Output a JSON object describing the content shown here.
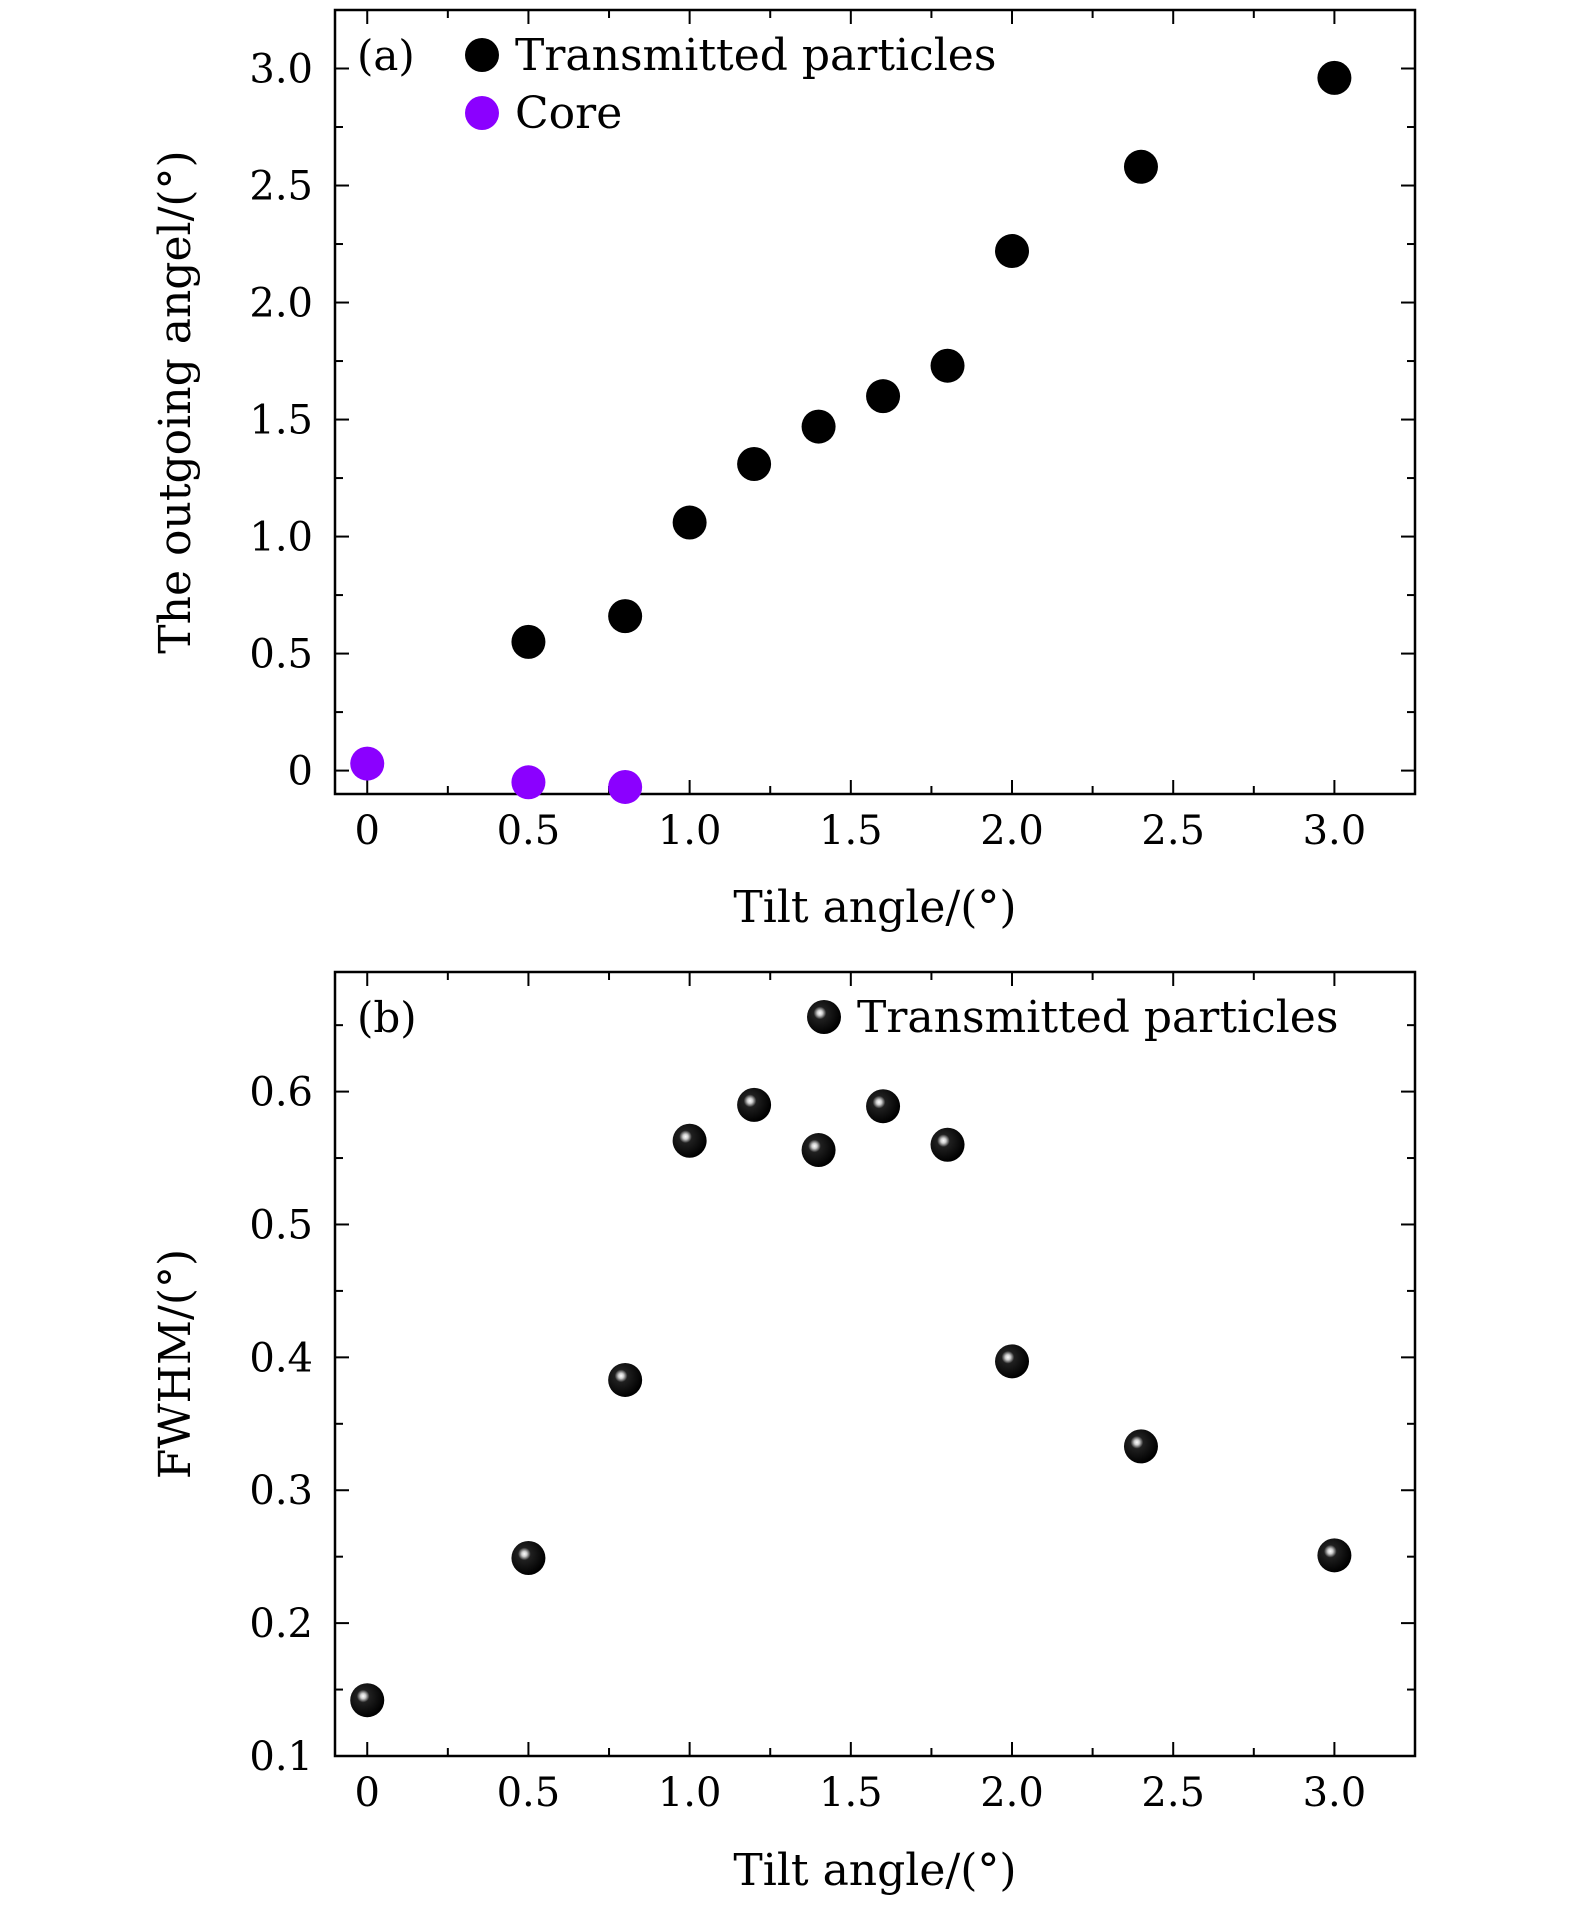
{
  "chart_data": [
    {
      "type": "scatter",
      "panel_label": "(a)",
      "xlabel": "Tilt angle/(°)",
      "ylabel": "The outgoing angel/(°)",
      "xlim": [
        -0.1,
        3.25
      ],
      "ylim": [
        -0.1,
        3.25
      ],
      "x_ticks": [
        0,
        0.5,
        1.0,
        1.5,
        2.0,
        2.5,
        3.0
      ],
      "x_tick_labels": [
        "0",
        "0.5",
        "1.0",
        "1.5",
        "2.0",
        "2.5",
        "3.0"
      ],
      "y_ticks": [
        0,
        0.5,
        1.0,
        1.5,
        2.0,
        2.5,
        3.0
      ],
      "y_tick_labels": [
        "0",
        "0.5",
        "1.0",
        "1.5",
        "2.0",
        "2.5",
        "3.0"
      ],
      "grid": false,
      "legend_position": "top-left",
      "series": [
        {
          "name": "Transmitted particles",
          "color": "#000000",
          "marker": "circle",
          "x": [
            0.5,
            0.8,
            1.0,
            1.2,
            1.4,
            1.6,
            1.8,
            2.0,
            2.4,
            3.0
          ],
          "y": [
            0.55,
            0.66,
            1.06,
            1.31,
            1.47,
            1.6,
            1.73,
            2.22,
            2.58,
            2.96
          ]
        },
        {
          "name": "Core",
          "color": "#8b00ff",
          "marker": "circle",
          "x": [
            0,
            0.5,
            0.8
          ],
          "y": [
            0.03,
            -0.05,
            -0.07
          ]
        }
      ]
    },
    {
      "type": "scatter",
      "panel_label": "(b)",
      "xlabel": "Tilt angle/(°)",
      "ylabel": "FWHM/(°)",
      "xlim": [
        -0.1,
        3.25
      ],
      "ylim": [
        0.1,
        0.69
      ],
      "x_ticks": [
        0,
        0.5,
        1.0,
        1.5,
        2.0,
        2.5,
        3.0
      ],
      "x_tick_labels": [
        "0",
        "0.5",
        "1.0",
        "1.5",
        "2.0",
        "2.5",
        "3.0"
      ],
      "y_ticks": [
        0.1,
        0.2,
        0.3,
        0.4,
        0.5,
        0.6
      ],
      "y_tick_labels": [
        "0.1",
        "0.2",
        "0.3",
        "0.4",
        "0.5",
        "0.6"
      ],
      "grid": false,
      "legend_position": "top-right",
      "series": [
        {
          "name": "Transmitted particles",
          "color": "#000000",
          "marker": "sphere",
          "x": [
            0,
            0.5,
            0.8,
            1.0,
            1.2,
            1.4,
            1.6,
            1.8,
            2.0,
            2.4,
            3.0
          ],
          "y": [
            0.142,
            0.249,
            0.383,
            0.563,
            0.59,
            0.556,
            0.589,
            0.56,
            0.397,
            0.333,
            0.251
          ]
        }
      ]
    }
  ]
}
